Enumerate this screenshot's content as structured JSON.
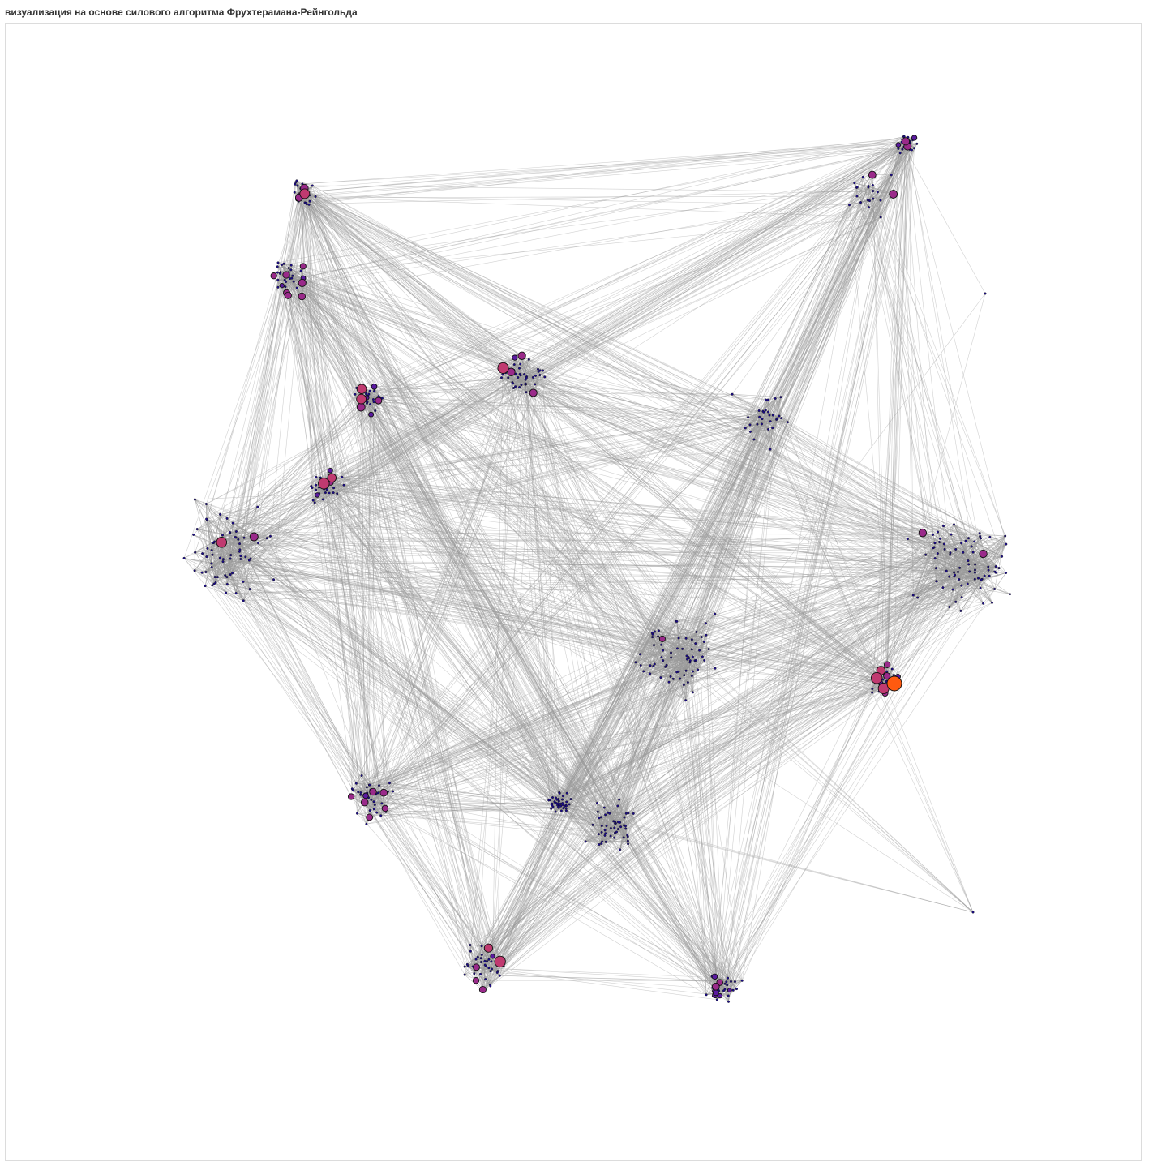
{
  "title": "визуализация на основе силового алгоритма Фрухтерамана-Рейнгольда",
  "graph": {
    "layout": "Fruchterman-Reingold force-directed",
    "edge_color": "#9a9a9a",
    "node_stroke": "#111111",
    "node_color_scale": [
      "#1a0a8c",
      "#5a1aa0",
      "#9a2a8a",
      "#c03a70",
      "#ff5a10"
    ],
    "background": "#ffffff",
    "frame_color": "#dcdcdc"
  }
}
